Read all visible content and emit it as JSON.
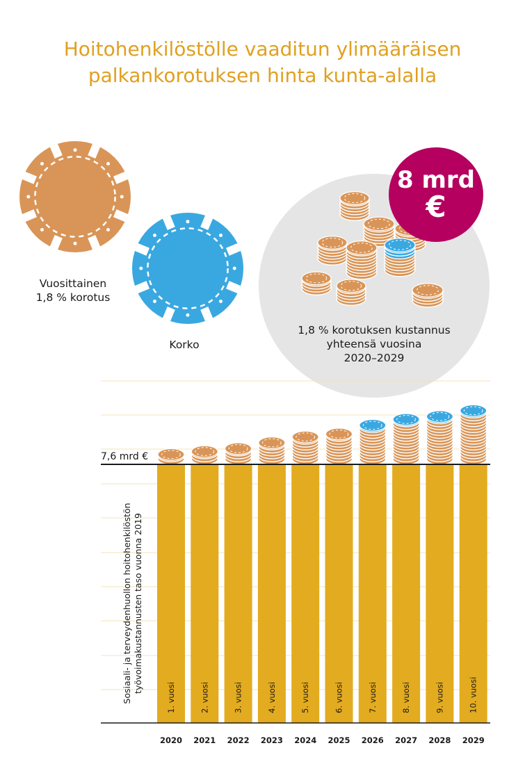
{
  "title": {
    "line1": "Hoitohenkilöstölle vaaditun ylimääräisen",
    "line2": "palkankorotuksen hinta kunta-alalla"
  },
  "legend": {
    "annual_raise_line1": "Vuosittainen",
    "annual_raise_line2": "1,8 % korotus",
    "interest": "Korko",
    "total_line1": "1,8 % korotuksen kustannus",
    "total_line2": "yhteensä vuosina",
    "total_line3": "2020–2029",
    "badge_line1": "8 mrd",
    "badge_line2": "€",
    "annual_raise_color": "#d99557",
    "interest_color": "#3aa8e0"
  },
  "chart_data": {
    "type": "bar",
    "title": "",
    "base_label": "7,6 mrd €",
    "base_value": 7.6,
    "ylabel_line1": "Sosiaali- ja terveydenhuollon hoitohenkilöstön",
    "ylabel_line2": "työvoimakustannusten taso vuonna 2019",
    "categories": [
      "2020",
      "2021",
      "2022",
      "2023",
      "2024",
      "2025",
      "2026",
      "2027",
      "2028",
      "2029"
    ],
    "bar_labels": [
      "1. vuosi",
      "2. vuosi",
      "3. vuosi",
      "4. vuosi",
      "5. vuosi",
      "6. vuosi",
      "7. vuosi",
      "8. vuosi",
      "9. vuosi",
      "10. vuosi"
    ],
    "series": [
      {
        "values": [
          0.14,
          0.28,
          0.42,
          0.57,
          0.72,
          0.87,
          1.02,
          1.17,
          1.32,
          1.48
        ]
      },
      {
        "values": [
          0.0,
          0.0,
          0.005,
          0.01,
          0.02,
          0.035,
          0.05,
          0.07,
          0.09,
          0.11
        ]
      }
    ],
    "grid": true,
    "bar_color": "#e3ab1f"
  }
}
